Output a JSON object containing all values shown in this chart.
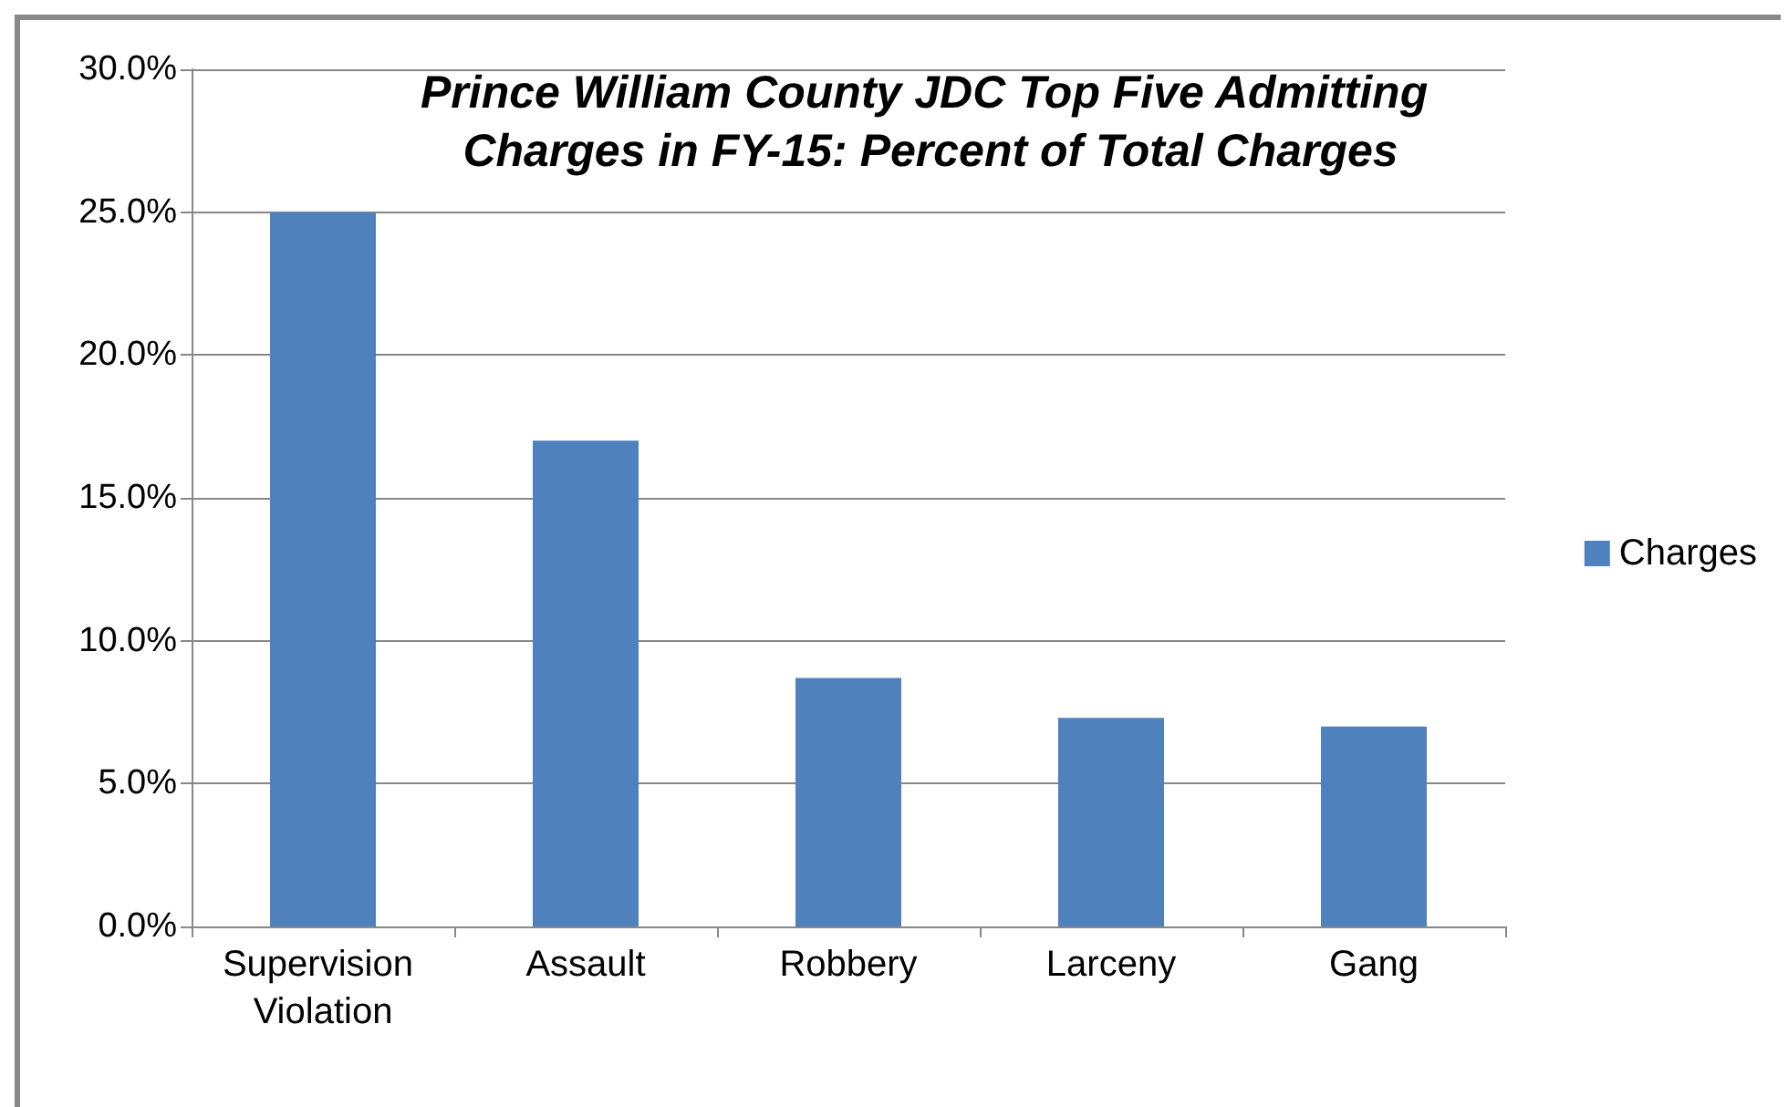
{
  "chart_data": {
    "type": "bar",
    "title": "Prince William County JDC Top Five Admitting Charges in FY-15: Percent of Total Charges",
    "categories": [
      "Supervision Violation",
      "Assault",
      "Robbery",
      "Larceny",
      "Gang"
    ],
    "series": [
      {
        "name": "Charges",
        "color": "#4f81bd",
        "values": [
          25.0,
          17.0,
          8.7,
          7.3,
          7.0
        ]
      }
    ],
    "ylim": [
      0,
      30
    ],
    "yticks": [
      {
        "value": 0,
        "label": "0.0%"
      },
      {
        "value": 5,
        "label": "5.0%"
      },
      {
        "value": 10,
        "label": "10.0%"
      },
      {
        "value": 15,
        "label": "15.0%"
      },
      {
        "value": 20,
        "label": "20.0%"
      },
      {
        "value": 25,
        "label": "25.0%"
      },
      {
        "value": 30,
        "label": "30.0%"
      }
    ],
    "grid": "y",
    "legend": "right"
  }
}
